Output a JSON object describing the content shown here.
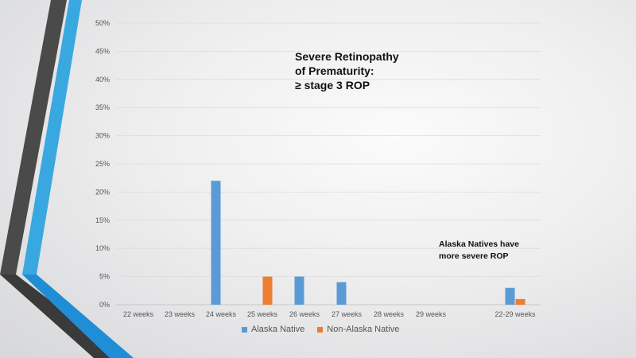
{
  "chart_data": {
    "type": "bar",
    "title": [
      "Severe Retinopathy",
      "of Prematurity:",
      "≥ stage 3 ROP"
    ],
    "annotation": [
      "Alaska Natives have",
      "more severe ROP"
    ],
    "categories": [
      "22 weeks",
      "23 weeks",
      "24 weeks",
      "25 weeks",
      "26 weeks",
      "27 weeks",
      "28 weeks",
      "29 weeks",
      "22-29 weeks"
    ],
    "series": [
      {
        "name": "Alaska Native",
        "color": "#5B9BD5",
        "values": [
          0,
          0,
          22,
          0,
          5,
          4,
          0,
          0,
          3
        ]
      },
      {
        "name": "Non-Alaska Native",
        "color": "#ED7D31",
        "values": [
          0,
          0,
          0,
          5,
          0,
          0,
          0,
          0,
          1
        ]
      }
    ],
    "yticks": [
      "0%",
      "5%",
      "10%",
      "15%",
      "20%",
      "25%",
      "30%",
      "35%",
      "40%",
      "45%",
      "50%"
    ],
    "ylim": [
      0,
      50
    ],
    "grid": true,
    "legend_position": "bottom"
  },
  "colors": {
    "bar_blue": "#5B9BD5",
    "bar_orange": "#ED7D31",
    "stripe_light_blue": "#3AA8E0",
    "stripe_dark": "#4A4A4A"
  }
}
